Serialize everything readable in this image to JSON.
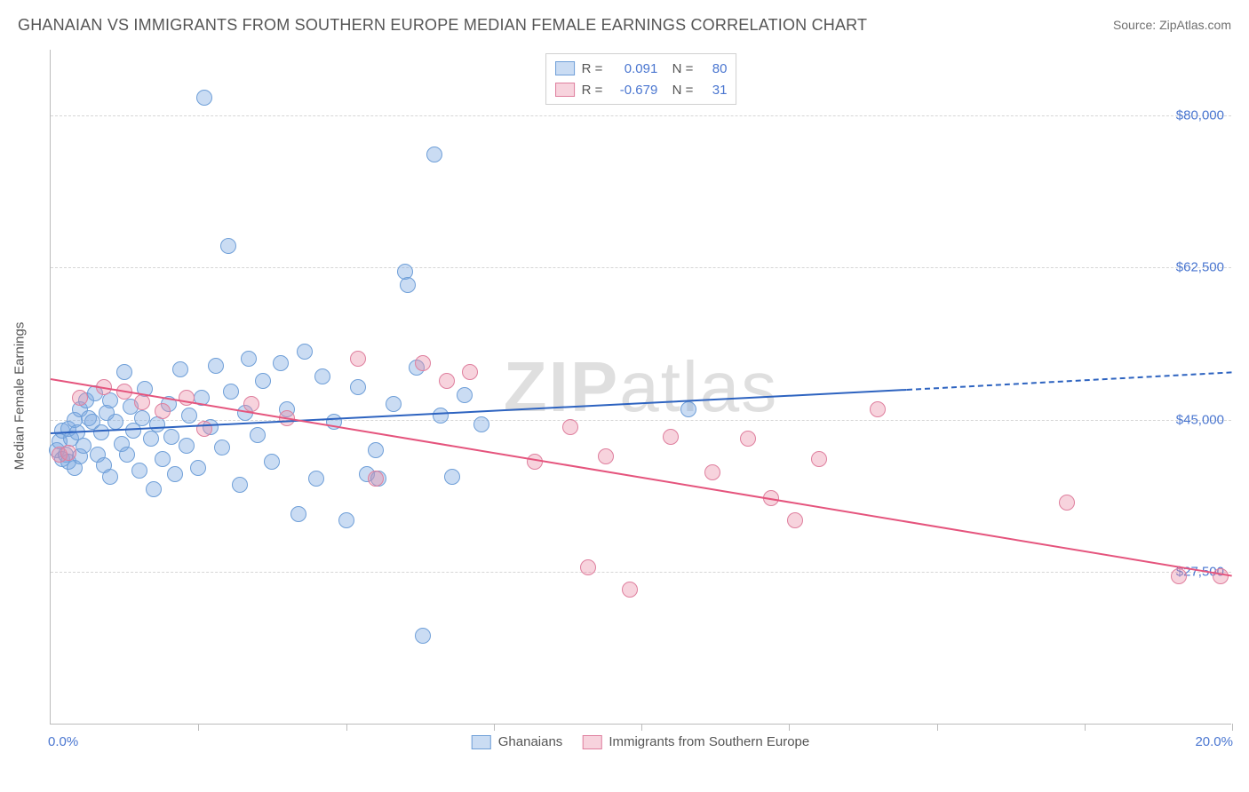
{
  "title": "GHANAIAN VS IMMIGRANTS FROM SOUTHERN EUROPE MEDIAN FEMALE EARNINGS CORRELATION CHART",
  "source_label": "Source: ZipAtlas.com",
  "ylabel": "Median Female Earnings",
  "watermark_bold": "ZIP",
  "watermark_light": "atlas",
  "chart": {
    "type": "scatter",
    "background_color": "#ffffff",
    "grid_color": "#d6d6d6",
    "axis_color": "#bcbcbc",
    "text_color": "#555555",
    "value_color": "#4a76d0",
    "xlim": [
      0.0,
      20.0
    ],
    "ylim": [
      10000,
      87500
    ],
    "x_min_label": "0.0%",
    "x_max_label": "20.0%",
    "x_ticks_pct": [
      2.5,
      5.0,
      7.5,
      10.0,
      12.5,
      15.0,
      17.5,
      20.0
    ],
    "y_gridlines": [
      27500,
      45000,
      62500,
      80000
    ],
    "y_tick_labels": [
      "$27,500",
      "$45,000",
      "$62,500",
      "$80,000"
    ],
    "marker_radius": 9,
    "marker_border_width": 1.5,
    "line_width": 2
  },
  "series": [
    {
      "key": "ghanaians",
      "label": "Ghanaians",
      "fill": "rgba(122,168,225,0.40)",
      "stroke": "#6f9fd8",
      "line_color": "#2d63c0",
      "R": "0.091",
      "N": "80",
      "trend": {
        "x1": 0.0,
        "y1": 43500,
        "x2_solid": 14.5,
        "y2_solid": 48500,
        "x2_dash": 20.0,
        "y2_dash": 50500
      },
      "points": [
        [
          0.1,
          41500
        ],
        [
          0.15,
          42500
        ],
        [
          0.2,
          40500
        ],
        [
          0.2,
          43800
        ],
        [
          0.25,
          41000
        ],
        [
          0.3,
          44000
        ],
        [
          0.3,
          40200
        ],
        [
          0.35,
          42800
        ],
        [
          0.4,
          45000
        ],
        [
          0.4,
          39500
        ],
        [
          0.45,
          43500
        ],
        [
          0.5,
          46200
        ],
        [
          0.5,
          40800
        ],
        [
          0.55,
          42000
        ],
        [
          0.6,
          47200
        ],
        [
          0.65,
          45200
        ],
        [
          0.7,
          44800
        ],
        [
          0.75,
          48000
        ],
        [
          0.8,
          41000
        ],
        [
          0.85,
          43500
        ],
        [
          0.9,
          39800
        ],
        [
          0.95,
          45800
        ],
        [
          1.0,
          47200
        ],
        [
          1.0,
          38500
        ],
        [
          1.1,
          44800
        ],
        [
          1.2,
          42200
        ],
        [
          1.25,
          50500
        ],
        [
          1.3,
          41000
        ],
        [
          1.35,
          46500
        ],
        [
          1.4,
          43800
        ],
        [
          1.5,
          39200
        ],
        [
          1.55,
          45200
        ],
        [
          1.6,
          48500
        ],
        [
          1.7,
          42800
        ],
        [
          1.75,
          37000
        ],
        [
          1.8,
          44500
        ],
        [
          1.9,
          40500
        ],
        [
          2.0,
          46800
        ],
        [
          2.05,
          43000
        ],
        [
          2.1,
          38800
        ],
        [
          2.2,
          50800
        ],
        [
          2.3,
          42000
        ],
        [
          2.35,
          45500
        ],
        [
          2.5,
          39500
        ],
        [
          2.55,
          47500
        ],
        [
          2.6,
          82000
        ],
        [
          2.7,
          44200
        ],
        [
          2.8,
          51200
        ],
        [
          2.9,
          41800
        ],
        [
          3.0,
          65000
        ],
        [
          3.05,
          48200
        ],
        [
          3.2,
          37500
        ],
        [
          3.3,
          45800
        ],
        [
          3.35,
          52000
        ],
        [
          3.5,
          43200
        ],
        [
          3.6,
          49500
        ],
        [
          3.75,
          40200
        ],
        [
          3.9,
          51500
        ],
        [
          4.0,
          46200
        ],
        [
          4.2,
          34200
        ],
        [
          4.3,
          52800
        ],
        [
          4.5,
          38200
        ],
        [
          4.6,
          50000
        ],
        [
          4.8,
          44800
        ],
        [
          5.0,
          33500
        ],
        [
          5.2,
          48800
        ],
        [
          5.35,
          38800
        ],
        [
          5.5,
          41500
        ],
        [
          5.55,
          38200
        ],
        [
          5.8,
          46800
        ],
        [
          6.0,
          62000
        ],
        [
          6.05,
          60500
        ],
        [
          6.2,
          51000
        ],
        [
          6.3,
          20200
        ],
        [
          6.5,
          75500
        ],
        [
          6.6,
          45500
        ],
        [
          6.8,
          38500
        ],
        [
          7.0,
          47800
        ],
        [
          7.3,
          44500
        ],
        [
          10.8,
          46200
        ]
      ]
    },
    {
      "key": "s_europe",
      "label": "Immigrants from Southern Europe",
      "fill": "rgba(235,140,165,0.38)",
      "stroke": "#df7f9e",
      "line_color": "#e5547d",
      "R": "-0.679",
      "N": "31",
      "trend": {
        "x1": 0.0,
        "y1": 49800,
        "x2_solid": 20.0,
        "y2_solid": 27200,
        "x2_dash": 20.0,
        "y2_dash": 27200
      },
      "points": [
        [
          0.15,
          41000
        ],
        [
          0.3,
          41200
        ],
        [
          0.5,
          47500
        ],
        [
          0.9,
          48800
        ],
        [
          1.25,
          48200
        ],
        [
          1.55,
          47000
        ],
        [
          1.9,
          46000
        ],
        [
          2.3,
          47500
        ],
        [
          2.6,
          44000
        ],
        [
          3.4,
          46800
        ],
        [
          4.0,
          45200
        ],
        [
          5.2,
          52000
        ],
        [
          5.5,
          38200
        ],
        [
          6.3,
          51500
        ],
        [
          6.7,
          49500
        ],
        [
          7.1,
          50500
        ],
        [
          8.2,
          40200
        ],
        [
          8.8,
          44200
        ],
        [
          9.1,
          28000
        ],
        [
          9.4,
          40800
        ],
        [
          9.8,
          25500
        ],
        [
          10.5,
          43000
        ],
        [
          11.2,
          39000
        ],
        [
          11.8,
          42800
        ],
        [
          12.2,
          36000
        ],
        [
          12.6,
          33500
        ],
        [
          13.0,
          40500
        ],
        [
          14.0,
          46200
        ],
        [
          17.2,
          35500
        ],
        [
          19.1,
          27000
        ],
        [
          19.8,
          27000
        ]
      ]
    }
  ]
}
